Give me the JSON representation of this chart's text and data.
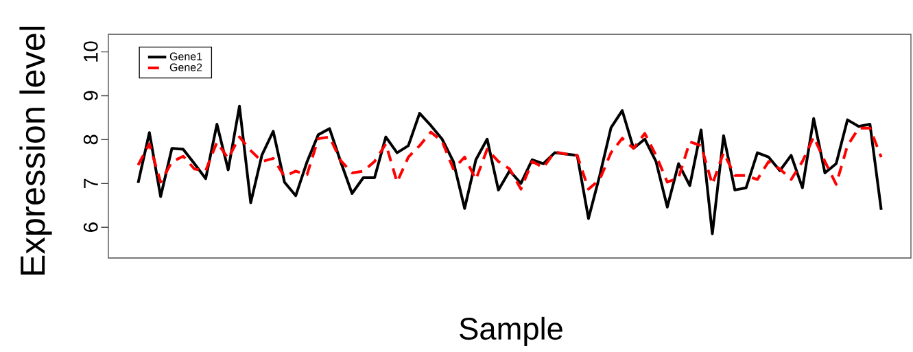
{
  "chart_data": {
    "type": "line",
    "xlabel": "Sample",
    "ylabel": "Expression level",
    "categories": [
      null,
      null,
      null,
      null,
      null,
      null,
      null,
      null,
      null,
      null,
      null,
      null,
      null,
      null,
      null,
      null,
      null,
      null,
      null,
      null,
      null,
      null,
      null,
      null,
      null,
      null,
      null,
      null,
      null,
      null,
      null,
      null,
      null,
      null,
      null,
      null,
      null,
      null,
      null,
      null,
      null,
      null,
      null,
      null,
      null,
      null,
      null,
      null,
      null,
      null,
      null,
      null,
      null,
      null,
      null,
      null,
      null,
      null,
      null,
      null,
      null,
      null,
      null,
      null,
      null,
      null,
      null
    ],
    "ylim": [
      5.3,
      10.4
    ],
    "yticks": [
      6,
      7,
      8,
      9,
      10
    ],
    "legend": "top left",
    "series": [
      {
        "name": "Gene1",
        "color": "#000000",
        "line_style": "solid",
        "values": [
          7.01,
          8.16,
          6.7,
          7.8,
          7.78,
          7.45,
          7.11,
          8.35,
          7.31,
          8.76,
          6.56,
          7.65,
          8.19,
          7.03,
          6.72,
          7.49,
          8.11,
          8.25,
          7.49,
          6.77,
          7.13,
          7.13,
          8.06,
          7.7,
          7.86,
          8.6,
          8.32,
          8.01,
          7.5,
          6.43,
          7.54,
          8.01,
          6.85,
          7.29,
          7.0,
          7.54,
          7.45,
          7.7,
          7.67,
          7.64,
          6.2,
          7.18,
          8.27,
          8.66,
          7.8,
          8.01,
          7.5,
          6.46,
          7.45,
          6.95,
          8.22,
          5.85,
          8.09,
          6.85,
          6.9,
          7.7,
          7.6,
          7.29,
          7.64,
          6.9,
          8.48,
          7.24,
          7.45,
          8.45,
          8.3,
          8.35,
          6.4
        ]
      },
      {
        "name": "Gene2",
        "color": "#ff0000",
        "line_style": "dashed",
        "values": [
          7.42,
          7.9,
          7.03,
          7.49,
          7.62,
          7.33,
          7.29,
          7.94,
          7.57,
          8.06,
          7.75,
          7.5,
          7.57,
          7.16,
          7.28,
          7.2,
          8.02,
          8.06,
          7.52,
          7.24,
          7.28,
          7.5,
          7.9,
          7.03,
          7.6,
          7.86,
          8.17,
          7.96,
          7.33,
          7.6,
          7.09,
          7.78,
          7.5,
          7.33,
          6.87,
          7.5,
          7.36,
          7.72,
          7.67,
          7.64,
          6.87,
          7.09,
          7.7,
          8.03,
          7.8,
          8.14,
          7.64,
          7.03,
          7.13,
          7.95,
          7.86,
          6.98,
          7.7,
          7.18,
          7.18,
          7.09,
          7.5,
          7.33,
          7.09,
          7.5,
          8.06,
          7.5,
          6.98,
          7.86,
          8.26,
          8.26,
          7.6
        ]
      }
    ]
  }
}
